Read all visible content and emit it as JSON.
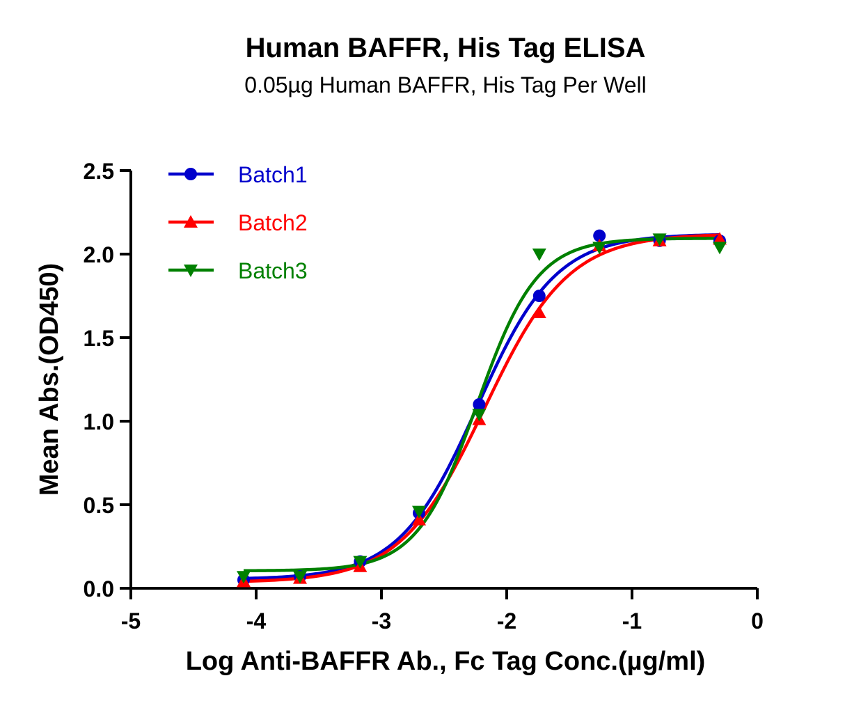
{
  "chart_data": {
    "type": "scatter",
    "title": "Human BAFFR, His Tag ELISA",
    "subtitle": "0.05µg Human BAFFR, His Tag Per Well",
    "xlabel": "Log Anti-BAFFR Ab., Fc Tag Conc.(µg/ml)",
    "ylabel": "Mean Abs.(OD450)",
    "xlim": [
      -5,
      0
    ],
    "ylim": [
      0,
      2.5
    ],
    "xticks": [
      "-5",
      "-4",
      "-3",
      "-2",
      "-1",
      "0"
    ],
    "yticks": [
      "0.0",
      "0.5",
      "1.0",
      "1.5",
      "2.0",
      "2.5"
    ],
    "grid": false,
    "legend_position": "top-left",
    "fit": "4-parameter logistic curve per series",
    "series": [
      {
        "name": "Batch1",
        "color": "#0000cc",
        "marker": "circle",
        "x": [
          -4.1,
          -3.65,
          -3.17,
          -2.7,
          -2.22,
          -1.74,
          -1.26,
          -0.78,
          -0.3
        ],
        "y": [
          0.05,
          0.07,
          0.16,
          0.45,
          1.1,
          1.75,
          2.11,
          2.08,
          2.08
        ]
      },
      {
        "name": "Batch2",
        "color": "#ff0000",
        "marker": "triangle-up",
        "x": [
          -4.1,
          -3.65,
          -3.17,
          -2.7,
          -2.22,
          -1.74,
          -1.26,
          -0.78,
          -0.3
        ],
        "y": [
          0.04,
          0.06,
          0.13,
          0.41,
          1.01,
          1.65,
          2.05,
          2.08,
          2.09
        ]
      },
      {
        "name": "Batch3",
        "color": "#008000",
        "marker": "triangle-down",
        "x": [
          -4.1,
          -3.65,
          -3.17,
          -2.7,
          -2.22,
          -1.74,
          -1.26,
          -0.78,
          -0.3
        ],
        "y": [
          0.07,
          0.07,
          0.16,
          0.46,
          1.04,
          2.0,
          2.04,
          2.09,
          2.04
        ]
      }
    ]
  }
}
